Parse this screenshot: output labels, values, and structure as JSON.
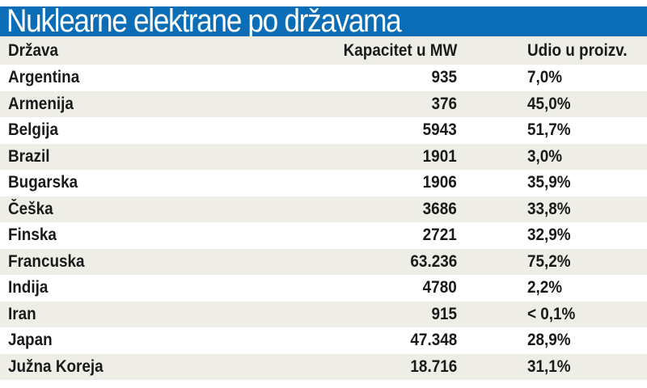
{
  "title": "Nuklearne elektrane po državama",
  "colors": {
    "title_bar": "#0a6db5",
    "title_text": "#ffffff",
    "row_alt": "#efeee6",
    "row_base": "#ffffff",
    "text": "#1a1a1a"
  },
  "table": {
    "headers": {
      "country": "Država",
      "capacity": "Kapacitet u MW",
      "share": "Udio u proizv."
    },
    "rows": [
      {
        "country": "Argentina",
        "capacity": "935",
        "share": "7,0%"
      },
      {
        "country": "Armenija",
        "capacity": "376",
        "share": "45,0%"
      },
      {
        "country": "Belgija",
        "capacity": "5943",
        "share": "51,7%"
      },
      {
        "country": "Brazil",
        "capacity": "1901",
        "share": "3,0%"
      },
      {
        "country": "Bugarska",
        "capacity": "1906",
        "share": "35,9%"
      },
      {
        "country": "Češka",
        "capacity": "3686",
        "share": "33,8%"
      },
      {
        "country": "Finska",
        "capacity": "2721",
        "share": "32,9%"
      },
      {
        "country": "Francuska",
        "capacity": "63.236",
        "share": "75,2%"
      },
      {
        "country": "Indija",
        "capacity": "4780",
        "share": "2,2%"
      },
      {
        "country": "Iran",
        "capacity": "915",
        "share": "< 0,1%"
      },
      {
        "country": "Japan",
        "capacity": "47.348",
        "share": "28,9%"
      },
      {
        "country": "Južna Koreja",
        "capacity": "18.716",
        "share": "31,1%"
      }
    ]
  }
}
